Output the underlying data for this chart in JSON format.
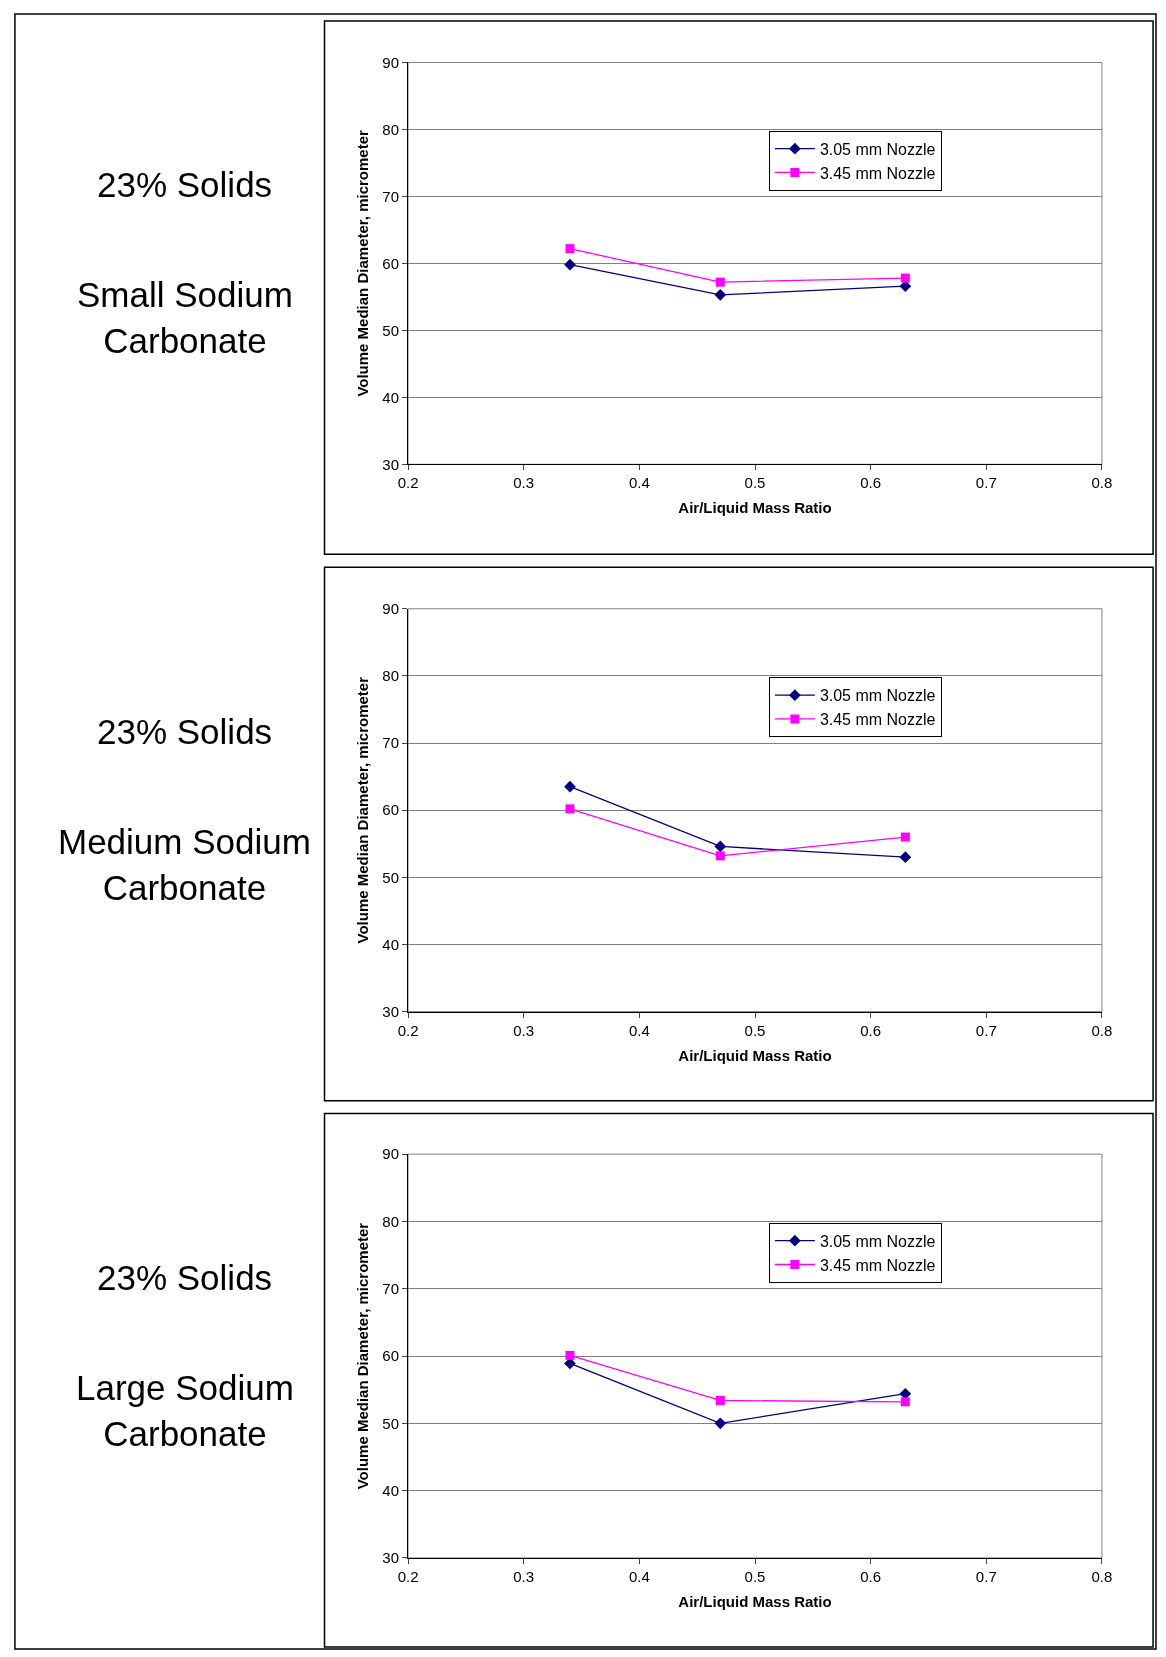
{
  "chart_data": [
    {
      "type": "line",
      "annotations": [
        "23% Solids",
        "Small Sodium\nCarbonate"
      ],
      "xlabel": "Air/Liquid Mass Ratio",
      "ylabel": "Volume Median Diameter, micrometer",
      "x": [
        0.34,
        0.47,
        0.63
      ],
      "xlim": [
        0.2,
        0.8
      ],
      "xticks": [
        0.2,
        0.3,
        0.4,
        0.5,
        0.6,
        0.7,
        0.8
      ],
      "ylim": [
        30,
        90
      ],
      "yticks": [
        30,
        40,
        50,
        60,
        70,
        80,
        90
      ],
      "grid": "y",
      "legend": "top right",
      "line_style": "solid",
      "series": [
        {
          "name": "3.05 mm Nozzle",
          "color": "#000080",
          "marker": "diamond",
          "values": [
            59.8,
            55.3,
            56.6
          ]
        },
        {
          "name": "3.45 mm Nozzle",
          "color": "#ff00ff",
          "marker": "square",
          "values": [
            62.2,
            57.2,
            57.8
          ]
        }
      ]
    },
    {
      "type": "line",
      "annotations": [
        "23% Solids",
        "Medium Sodium\nCarbonate"
      ],
      "xlabel": "Air/Liquid Mass Ratio",
      "ylabel": "Volume Median Diameter, micrometer",
      "x": [
        0.34,
        0.47,
        0.63
      ],
      "xlim": [
        0.2,
        0.8
      ],
      "xticks": [
        0.2,
        0.3,
        0.4,
        0.5,
        0.6,
        0.7,
        0.8
      ],
      "ylim": [
        30,
        90
      ],
      "yticks": [
        30,
        40,
        50,
        60,
        70,
        80,
        90
      ],
      "grid": "y",
      "legend": "top right",
      "line_style": "solid",
      "series": [
        {
          "name": "3.05 mm Nozzle",
          "color": "#000080",
          "marker": "diamond",
          "values": [
            63.5,
            54.6,
            53.0
          ]
        },
        {
          "name": "3.45 mm Nozzle",
          "color": "#ff00ff",
          "marker": "square",
          "values": [
            60.2,
            53.2,
            56.0
          ]
        }
      ]
    },
    {
      "type": "line",
      "annotations": [
        "23% Solids",
        "Large Sodium\nCarbonate"
      ],
      "xlabel": "Air/Liquid Mass Ratio",
      "ylabel": "Volume Median Diameter, micrometer",
      "x": [
        0.34,
        0.47,
        0.63
      ],
      "xlim": [
        0.2,
        0.8
      ],
      "xticks": [
        0.2,
        0.3,
        0.4,
        0.5,
        0.6,
        0.7,
        0.8
      ],
      "ylim": [
        30,
        90
      ],
      "yticks": [
        30,
        40,
        50,
        60,
        70,
        80,
        90
      ],
      "grid": "y",
      "legend": "top right",
      "line_style": "solid",
      "series": [
        {
          "name": "3.05 mm Nozzle",
          "color": "#000080",
          "marker": "diamond",
          "values": [
            58.9,
            50.0,
            54.4
          ]
        },
        {
          "name": "3.45 mm Nozzle",
          "color": "#ff00ff",
          "marker": "square",
          "values": [
            60.1,
            53.4,
            53.2
          ]
        }
      ]
    }
  ]
}
